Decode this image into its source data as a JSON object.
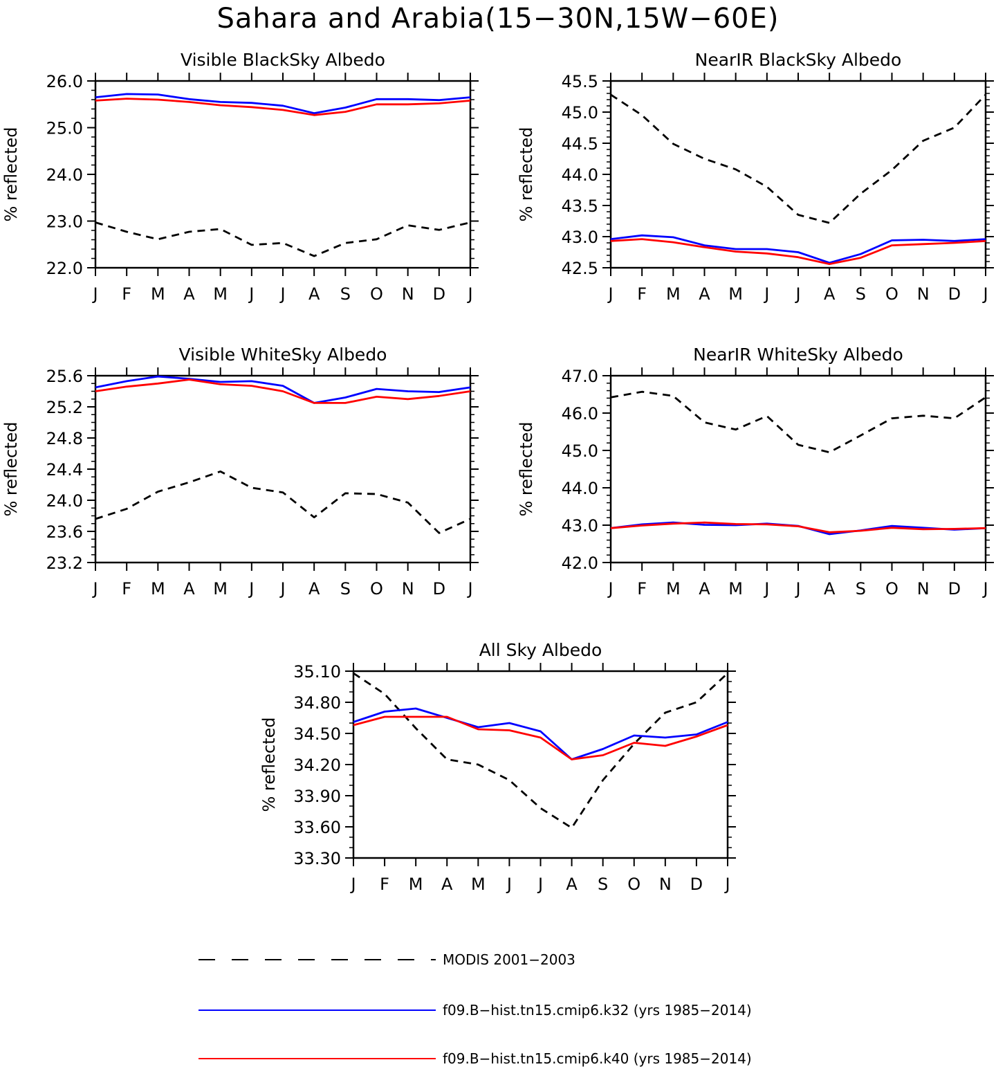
{
  "title": "Sahara and Arabia(15−30N,15W−60E)",
  "colors": {
    "modis": "#000000",
    "k32": "#0000ff",
    "k40": "#ff0000"
  },
  "legend": [
    {
      "key": "modis",
      "label": "MODIS 2001−2003",
      "style": "dashed"
    },
    {
      "key": "k32",
      "label": "f09.B−hist.tn15.cmip6.k32 (yrs 1985−2014)",
      "style": "solid"
    },
    {
      "key": "k40",
      "label": "f09.B−hist.tn15.cmip6.k40 (yrs 1985−2014)",
      "style": "solid"
    }
  ],
  "chart_data": [
    {
      "type": "line",
      "title": "Visible BlackSky Albedo",
      "ylabel": "% reflected",
      "categories": [
        "J",
        "F",
        "M",
        "A",
        "M",
        "J",
        "J",
        "A",
        "S",
        "O",
        "N",
        "D",
        "J"
      ],
      "ylim": [
        22.0,
        26.0
      ],
      "yticks": [
        "22.0",
        "23.0",
        "24.0",
        "25.0",
        "26.0"
      ],
      "minor_step": 0.2,
      "series": [
        {
          "key": "modis",
          "style": "dashed",
          "values": [
            22.97,
            22.77,
            22.61,
            22.77,
            22.83,
            22.49,
            22.53,
            22.25,
            22.53,
            22.61,
            22.91,
            22.81,
            22.97
          ]
        },
        {
          "key": "k32",
          "style": "solid",
          "values": [
            25.65,
            25.72,
            25.71,
            25.61,
            25.55,
            25.53,
            25.47,
            25.31,
            25.43,
            25.61,
            25.61,
            25.59,
            25.65
          ]
        },
        {
          "key": "k40",
          "style": "solid",
          "values": [
            25.58,
            25.62,
            25.6,
            25.55,
            25.48,
            25.44,
            25.38,
            25.27,
            25.34,
            25.5,
            25.5,
            25.52,
            25.58
          ]
        }
      ]
    },
    {
      "type": "line",
      "title": "NearIR BlackSky Albedo",
      "ylabel": "% reflected",
      "categories": [
        "J",
        "F",
        "M",
        "A",
        "M",
        "J",
        "J",
        "A",
        "S",
        "O",
        "N",
        "D",
        "J"
      ],
      "ylim": [
        42.5,
        45.5
      ],
      "yticks": [
        "42.5",
        "43.0",
        "43.5",
        "44.0",
        "44.5",
        "45.0",
        "45.5"
      ],
      "minor_step": 0.1,
      "series": [
        {
          "key": "modis",
          "style": "dashed",
          "values": [
            45.28,
            44.95,
            44.49,
            44.25,
            44.08,
            43.8,
            43.35,
            43.22,
            43.69,
            44.07,
            44.54,
            44.75,
            45.28
          ]
        },
        {
          "key": "k32",
          "style": "solid",
          "values": [
            42.96,
            43.02,
            42.99,
            42.86,
            42.8,
            42.8,
            42.75,
            42.58,
            42.72,
            42.94,
            42.95,
            42.93,
            42.96
          ]
        },
        {
          "key": "k40",
          "style": "solid",
          "values": [
            42.93,
            42.96,
            42.91,
            42.83,
            42.76,
            42.73,
            42.67,
            42.56,
            42.66,
            42.86,
            42.88,
            42.9,
            42.93
          ]
        }
      ]
    },
    {
      "type": "line",
      "title": "Visible WhiteSky Albedo",
      "ylabel": "% reflected",
      "categories": [
        "J",
        "F",
        "M",
        "A",
        "M",
        "J",
        "J",
        "A",
        "S",
        "O",
        "N",
        "D",
        "J"
      ],
      "ylim": [
        23.2,
        25.6
      ],
      "yticks": [
        "23.2",
        "23.6",
        "24.0",
        "24.4",
        "24.8",
        "25.2",
        "25.6"
      ],
      "minor_step": 0.1,
      "series": [
        {
          "key": "modis",
          "style": "dashed",
          "values": [
            23.76,
            23.89,
            24.11,
            24.23,
            24.37,
            24.16,
            24.1,
            23.78,
            24.09,
            24.08,
            23.97,
            23.58,
            23.76
          ]
        },
        {
          "key": "k32",
          "style": "solid",
          "values": [
            25.45,
            25.53,
            25.59,
            25.56,
            25.52,
            25.53,
            25.47,
            25.25,
            25.32,
            25.43,
            25.4,
            25.39,
            25.45
          ]
        },
        {
          "key": "k40",
          "style": "solid",
          "values": [
            25.4,
            25.46,
            25.5,
            25.55,
            25.49,
            25.47,
            25.4,
            25.25,
            25.25,
            25.33,
            25.3,
            25.34,
            25.4
          ]
        }
      ]
    },
    {
      "type": "line",
      "title": "NearIR WhiteSky Albedo",
      "ylabel": "% reflected",
      "categories": [
        "J",
        "F",
        "M",
        "A",
        "M",
        "J",
        "J",
        "A",
        "S",
        "O",
        "N",
        "D",
        "J"
      ],
      "ylim": [
        42.0,
        47.0
      ],
      "yticks": [
        "42.0",
        "43.0",
        "44.0",
        "45.0",
        "46.0",
        "47.0"
      ],
      "minor_step": 0.2,
      "series": [
        {
          "key": "modis",
          "style": "dashed",
          "values": [
            46.42,
            46.57,
            46.46,
            45.75,
            45.56,
            45.92,
            45.15,
            44.95,
            45.4,
            45.86,
            45.93,
            45.86,
            46.42
          ]
        },
        {
          "key": "k32",
          "style": "solid",
          "values": [
            42.92,
            43.02,
            43.07,
            43.01,
            43.0,
            43.04,
            42.98,
            42.76,
            42.86,
            42.98,
            42.93,
            42.88,
            42.92
          ]
        },
        {
          "key": "k40",
          "style": "solid",
          "values": [
            42.92,
            42.99,
            43.04,
            43.07,
            43.03,
            43.02,
            42.97,
            42.81,
            42.85,
            42.93,
            42.89,
            42.9,
            42.92
          ]
        }
      ]
    },
    {
      "type": "line",
      "title": "All Sky Albedo",
      "ylabel": "% reflected",
      "categories": [
        "J",
        "F",
        "M",
        "A",
        "M",
        "J",
        "J",
        "A",
        "S",
        "O",
        "N",
        "D",
        "J"
      ],
      "ylim": [
        33.3,
        35.1
      ],
      "yticks": [
        "33.30",
        "33.60",
        "33.90",
        "34.20",
        "34.50",
        "34.80",
        "35.10"
      ],
      "minor_step": 0.1,
      "series": [
        {
          "key": "modis",
          "style": "dashed",
          "values": [
            35.08,
            34.88,
            34.55,
            34.25,
            34.2,
            34.05,
            33.78,
            33.59,
            34.05,
            34.4,
            34.7,
            34.8,
            35.08
          ]
        },
        {
          "key": "k32",
          "style": "solid",
          "values": [
            34.61,
            34.71,
            34.74,
            34.65,
            34.56,
            34.6,
            34.52,
            34.25,
            34.35,
            34.48,
            34.46,
            34.49,
            34.61
          ]
        },
        {
          "key": "k40",
          "style": "solid",
          "values": [
            34.58,
            34.66,
            34.66,
            34.66,
            34.54,
            34.53,
            34.46,
            34.25,
            34.29,
            34.41,
            34.38,
            34.47,
            34.58
          ]
        }
      ]
    }
  ]
}
